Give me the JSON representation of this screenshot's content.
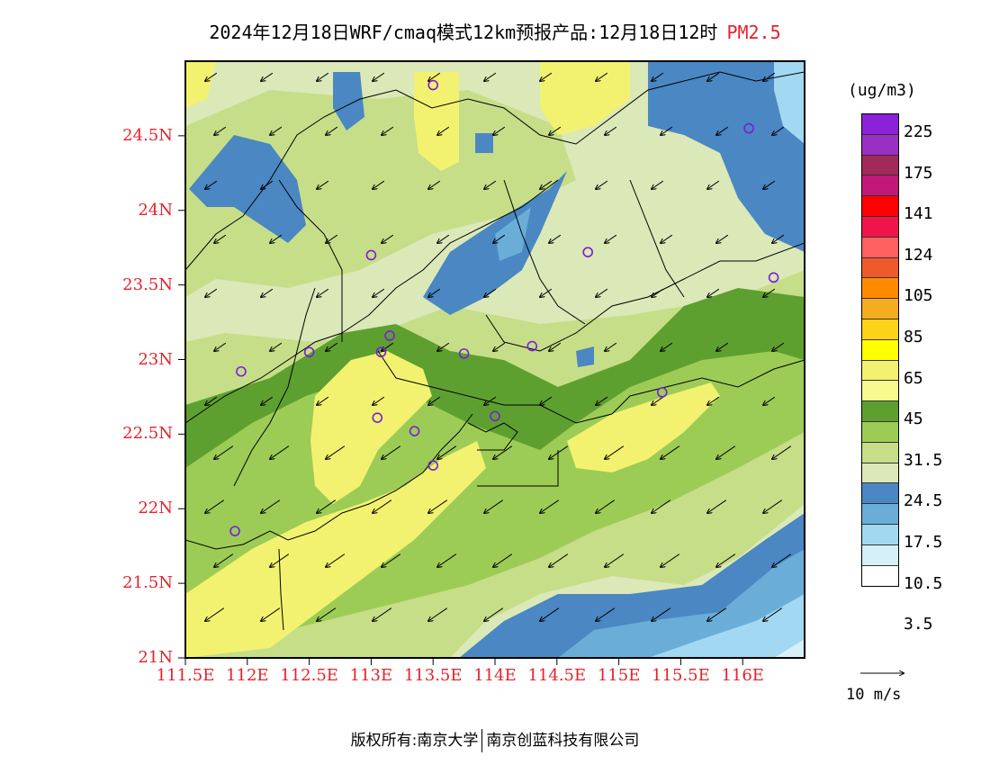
{
  "title": {
    "main": "2024年12月18日WRF/cmaq模式12km预报产品:12月18日12时",
    "species": "PM2.5"
  },
  "lat_labels": [
    "24.5N",
    "24N",
    "23.5N",
    "23N",
    "22.5N",
    "22N",
    "21.5N",
    "21N"
  ],
  "lon_labels": [
    "111.5E",
    "112E",
    "112.5E",
    "113E",
    "113.5E",
    "114E",
    "114.5E",
    "115E",
    "115.5E",
    "116E"
  ],
  "legend": {
    "unit": "(ug/m3)",
    "colors": [
      "#8b22d8",
      "#9a2fc4",
      "#a02a5a",
      "#c2187a",
      "#ff0000",
      "#f0144a",
      "#ff6060",
      "#ee5a2a",
      "#ff8a00",
      "#f4ac20",
      "#ffd21a",
      "#ffff00",
      "#f2f270",
      "#f8fa90",
      "#5ea030",
      "#9ccc55",
      "#c6de88",
      "#dbe8b8",
      "#4a87c3",
      "#6aaed8",
      "#a2d8f2",
      "#d6f0fa",
      "#ffffff"
    ],
    "tick_labels": [
      "225",
      "175",
      "141",
      "124",
      "105",
      "85",
      "65",
      "45",
      "31.5",
      "24.5",
      "17.5",
      "10.5",
      "3.5"
    ],
    "tick_cells": [
      1,
      3,
      5,
      7,
      9,
      11,
      13,
      15,
      17,
      19,
      21,
      23,
      25
    ]
  },
  "wind_reference": "10 m/s",
  "footer": {
    "left": "版权所有:南京大学",
    "right": "南京创蓝科技有限公司"
  },
  "sites": [
    [
      113.5,
      24.84
    ],
    [
      116.05,
      24.55
    ],
    [
      113.0,
      23.7
    ],
    [
      114.75,
      23.72
    ],
    [
      116.25,
      23.55
    ],
    [
      113.15,
      23.16
    ],
    [
      113.08,
      23.05
    ],
    [
      112.5,
      23.05
    ],
    [
      111.95,
      22.92
    ],
    [
      113.75,
      23.04
    ],
    [
      114.3,
      23.09
    ],
    [
      113.05,
      22.61
    ],
    [
      113.35,
      22.52
    ],
    [
      114.0,
      22.62
    ],
    [
      113.5,
      22.29
    ],
    [
      115.35,
      22.78
    ],
    [
      111.9,
      21.85
    ]
  ],
  "wind_direction": "northeasterly"
}
